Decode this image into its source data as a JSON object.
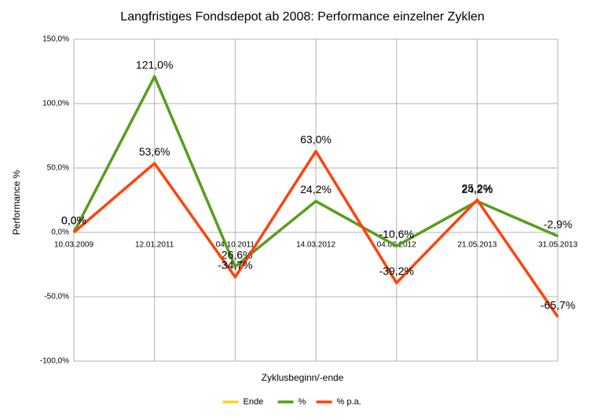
{
  "chart_data": {
    "type": "line",
    "title": "Langfristiges Fondsdepot ab 2008: Performance einzelner Zyklen",
    "x_label": "Zyklusbeginn/-ende",
    "y_label": "Performance %",
    "categories": [
      "10.03.2009",
      "12.01.2011",
      "04.10.2011",
      "14.03.2012",
      "04.06.2012",
      "21.05.2013",
      "31.05.2013"
    ],
    "series": [
      {
        "name": "Ende",
        "color": "#ffd320",
        "values": [
          null,
          null,
          null,
          null,
          null,
          null,
          null
        ]
      },
      {
        "name": "%",
        "color": "#579d1c",
        "values": [
          0,
          121,
          -26.6,
          24.2,
          -10.6,
          24.2,
          -2.9
        ],
        "value_labels": [
          "0,0%",
          "121,0%",
          "-26,6%",
          "24,2%",
          "-10,6%",
          "24,2%",
          "-2,9%"
        ]
      },
      {
        "name": "% p.a.",
        "color": "#ff420e",
        "values": [
          0,
          53.6,
          -34.7,
          63,
          -39.2,
          25.2,
          -65.7
        ],
        "value_labels": [
          "0,0%",
          "53,6%",
          "-34,7%",
          "63,0%",
          "-39,2%",
          "25,2%",
          "-65,7%"
        ]
      }
    ],
    "ylim": [
      -100,
      150
    ],
    "yticks": [
      {
        "value": -100,
        "label": "-100,0%"
      },
      {
        "value": -50,
        "label": "-50,0%"
      },
      {
        "value": 0,
        "label": "0,0%"
      },
      {
        "value": 50,
        "label": "50,0%"
      },
      {
        "value": 100,
        "label": "100,0%"
      },
      {
        "value": 150,
        "label": "150,0%"
      }
    ],
    "grid": true,
    "legend": "bottom"
  }
}
